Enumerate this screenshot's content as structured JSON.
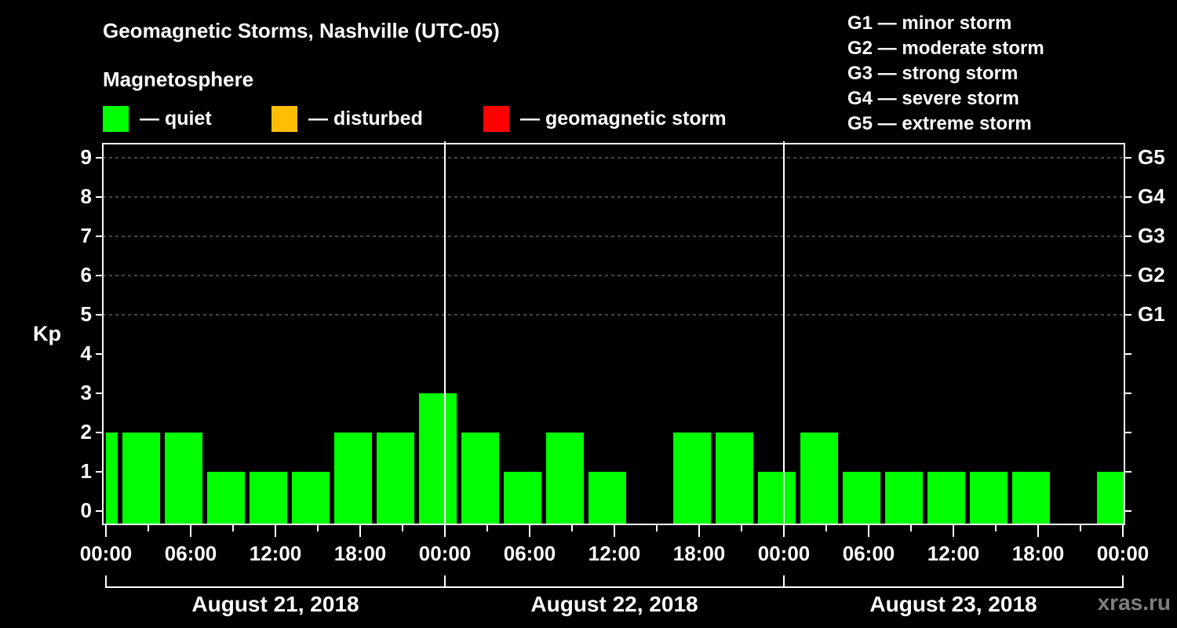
{
  "header": {
    "title": "Geomagnetic Storms, Nashville (UTC-05)",
    "subtitle": "Magnetosphere"
  },
  "legend": [
    {
      "label": "— quiet",
      "color": "#00ff00"
    },
    {
      "label": "— disturbed",
      "color": "#ffbf00"
    },
    {
      "label": "— geomagnetic storm",
      "color": "#ff0000"
    }
  ],
  "g_scale": [
    "G1 — minor storm",
    "G2 — moderate storm",
    "G3 — strong storm",
    "G4 — severe storm",
    "G5 — extreme storm"
  ],
  "axis": {
    "ylabel": "Kp",
    "yticks": [
      "0",
      "1",
      "2",
      "3",
      "4",
      "5",
      "6",
      "7",
      "8",
      "9"
    ],
    "gticks": [
      {
        "label": "G1",
        "kp": 5
      },
      {
        "label": "G2",
        "kp": 6
      },
      {
        "label": "G3",
        "kp": 7
      },
      {
        "label": "G4",
        "kp": 8
      },
      {
        "label": "G5",
        "kp": 9
      }
    ],
    "xticks": [
      "00:00",
      "06:00",
      "12:00",
      "18:00",
      "00:00",
      "06:00",
      "12:00",
      "18:00",
      "00:00",
      "06:00",
      "12:00",
      "18:00",
      "00:00"
    ],
    "dates": [
      "August 21, 2018",
      "August 22, 2018",
      "August 23, 2018"
    ]
  },
  "watermark": "xras.ru",
  "chart_data": {
    "type": "bar",
    "title": "Geomagnetic Storms, Nashville (UTC-05)",
    "subtitle": "Magnetosphere",
    "xlabel": "",
    "ylabel": "Kp",
    "ylim": [
      0,
      9
    ],
    "grid": "horizontal dashed at Kp 5-9",
    "legend_position": "top",
    "slot_hours": 3,
    "categories": [
      "Aug 20 22:00",
      "Aug 21 01:00",
      "Aug 21 04:00",
      "Aug 21 07:00",
      "Aug 21 10:00",
      "Aug 21 13:00",
      "Aug 21 16:00",
      "Aug 21 19:00",
      "Aug 21 22:00",
      "Aug 22 01:00",
      "Aug 22 04:00",
      "Aug 22 07:00",
      "Aug 22 10:00",
      "Aug 22 13:00",
      "Aug 22 16:00",
      "Aug 22 19:00",
      "Aug 22 22:00",
      "Aug 23 01:00",
      "Aug 23 04:00",
      "Aug 23 07:00",
      "Aug 23 10:00",
      "Aug 23 13:00",
      "Aug 23 16:00",
      "Aug 23 19:00",
      "Aug 23 22:00"
    ],
    "values": [
      2,
      2,
      2,
      1,
      1,
      1,
      2,
      2,
      3,
      2,
      1,
      2,
      1,
      0,
      2,
      2,
      1,
      2,
      1,
      1,
      1,
      1,
      1,
      0,
      1
    ],
    "bar_colors": "all #00ff00 (quiet)",
    "right_axis": {
      "G1": 5,
      "G2": 6,
      "G3": 7,
      "G4": 8,
      "G5": 9
    }
  }
}
